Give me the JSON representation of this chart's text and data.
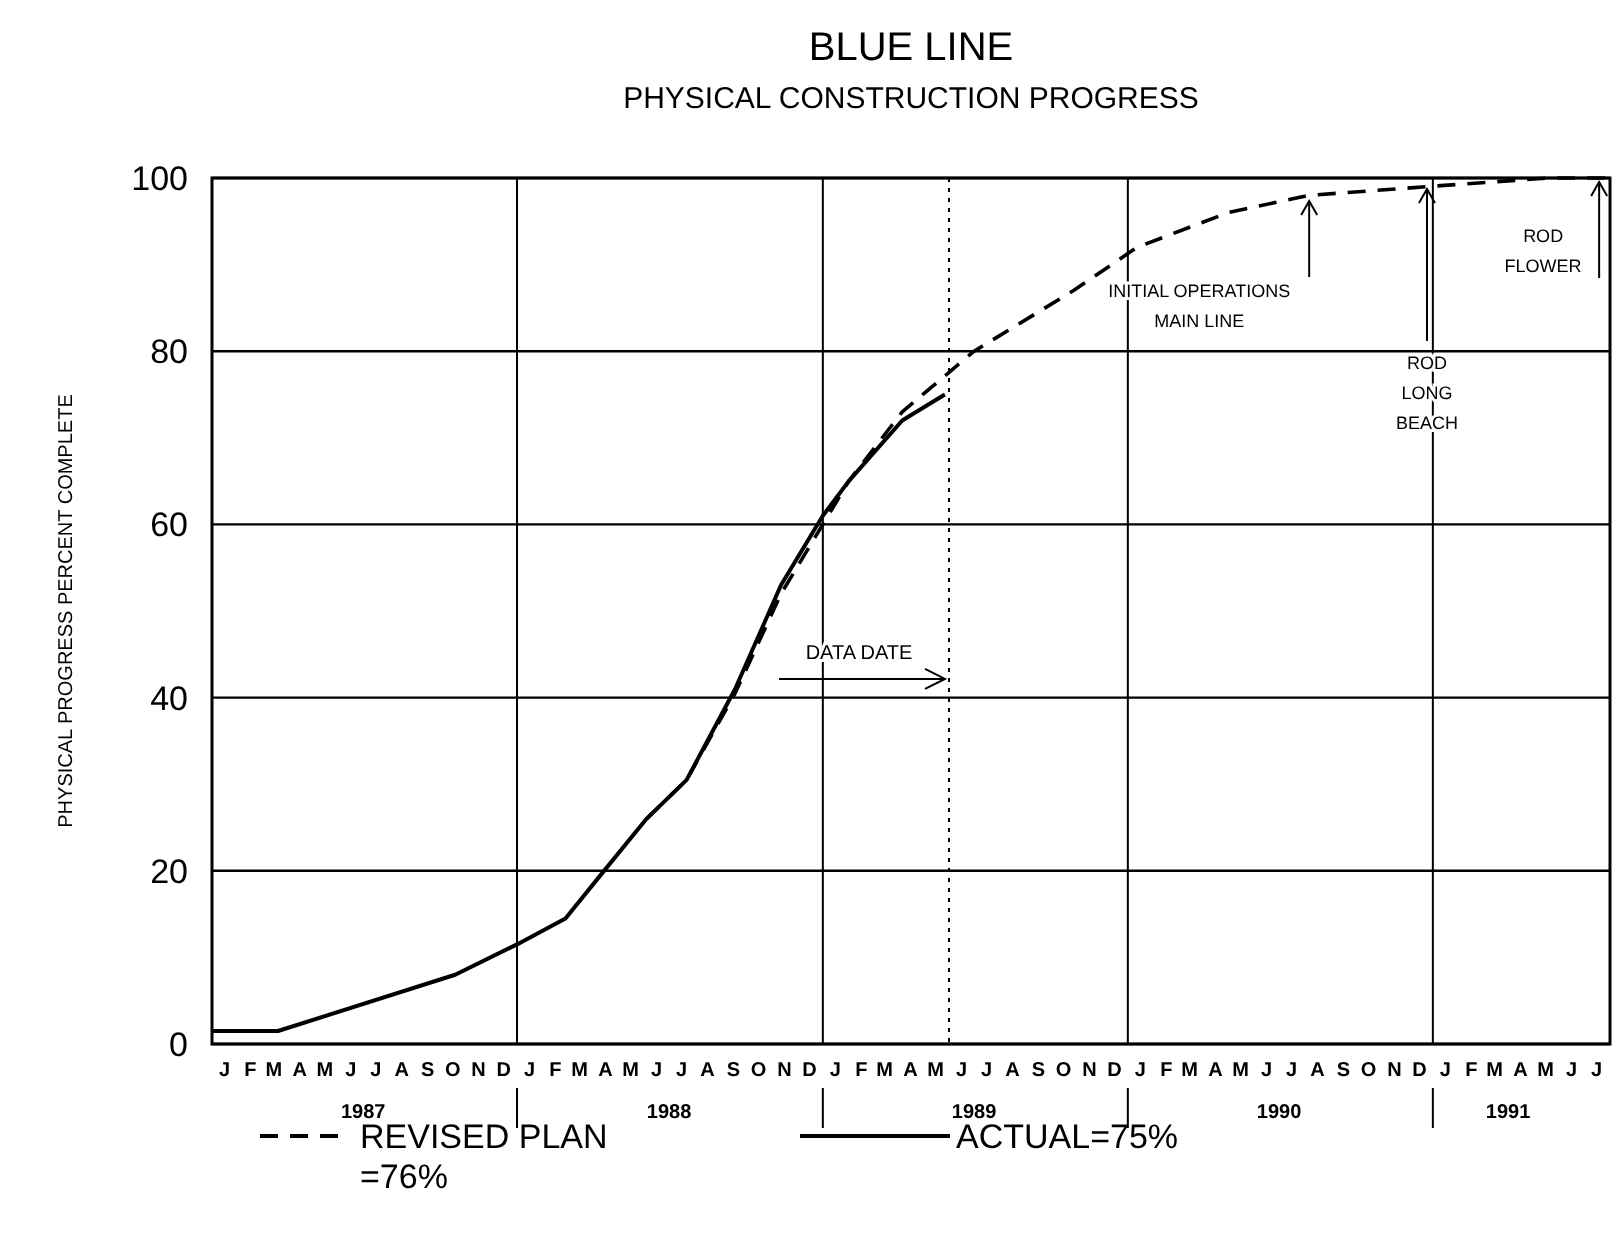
{
  "chart_data": {
    "type": "line",
    "title": "BLUE LINE",
    "subtitle": "PHYSICAL CONSTRUCTION PROGRESS",
    "ylabel": "PHYSICAL PROGRESS PERCENT COMPLETE",
    "xlim": [
      "1987-01-01",
      "1991-08-01"
    ],
    "ylim": [
      0,
      100
    ],
    "yticks": [
      0,
      20,
      40,
      60,
      80,
      100
    ],
    "xticks": [
      {
        "value": "1987-07-01",
        "label": "1987"
      },
      {
        "value": "1988-01-01",
        "label": null
      },
      {
        "value": "1988-07-01",
        "label": "1988"
      },
      {
        "value": "1989-01-01",
        "label": null
      },
      {
        "value": "1989-07-01",
        "label": "1989"
      },
      {
        "value": "1990-01-01",
        "label": null
      },
      {
        "value": "1990-07-01",
        "label": "1990"
      },
      {
        "value": "1991-01-01",
        "label": null
      },
      {
        "value": "1991-04-01",
        "label": "1991"
      }
    ],
    "grid": true,
    "legend": "bottom",
    "series": [
      {
        "name": "REVISED PLAN =76%",
        "color": "#000000",
        "line_style": "dashed",
        "x": [
          "1988-06-04",
          "1988-07-22",
          "1988-09-18",
          "1988-11-12",
          "1989-01-01",
          "1989-02-01",
          "1989-04-06",
          "1989-07-01",
          "1989-10-28",
          "1990-01-12",
          "1990-05-01",
          "1990-08-06",
          "1990-12-25",
          "1991-05-19",
          "1991-08-01"
        ],
        "values": [
          26,
          30.5,
          40.5,
          52,
          60,
          65,
          73,
          80,
          87,
          92,
          96,
          98,
          99,
          100,
          100
        ]
      },
      {
        "name": "ACTUAL=75%",
        "color": "#000000",
        "line_style": "solid",
        "x": [
          "1987-01-01",
          "1987-03-21",
          "1987-10-19",
          "1988-01-01",
          "1988-02-28",
          "1988-04-10",
          "1988-06-04",
          "1988-07-22",
          "1988-09-18",
          "1988-11-12",
          "1989-01-01",
          "1989-02-01",
          "1989-04-06",
          "1989-05-27"
        ],
        "values": [
          1.5,
          1.5,
          8,
          11.5,
          14.5,
          19.5,
          26,
          30.5,
          41,
          53,
          61,
          65,
          72,
          75
        ]
      }
    ],
    "ref_lines": [
      {
        "axis": "x",
        "value": "1989-06-01",
        "label": "DATA DATE",
        "line_style": "dotted"
      }
    ],
    "annotations": [
      {
        "text": "INITIAL OPERATIONS MAIN LINE",
        "x": "1990-08-06",
        "y": 97.8
      },
      {
        "text": "ROD LONG BEACH",
        "x": "1990-12-25",
        "y": 99.2
      },
      {
        "text": "ROD FLOWER",
        "x": "1991-07-19",
        "y": 100
      },
      "J",
      "F",
      "M",
      "A",
      "M",
      "J",
      "J",
      "A",
      "S",
      "O",
      "N",
      "D",
      "J",
      "F",
      "M",
      "A",
      "M",
      "J",
      "J",
      "A",
      "S",
      "O",
      "N",
      "D",
      "J",
      "F",
      "M",
      "A",
      "M",
      "J",
      "J",
      "A",
      "S",
      "O",
      "N",
      "D",
      "J",
      "F",
      "M",
      "A",
      "M",
      "J",
      "J",
      "A",
      "S",
      "O",
      "N",
      "D",
      "J",
      "F",
      "M",
      "A",
      "M",
      "J",
      "J"
    ]
  }
}
